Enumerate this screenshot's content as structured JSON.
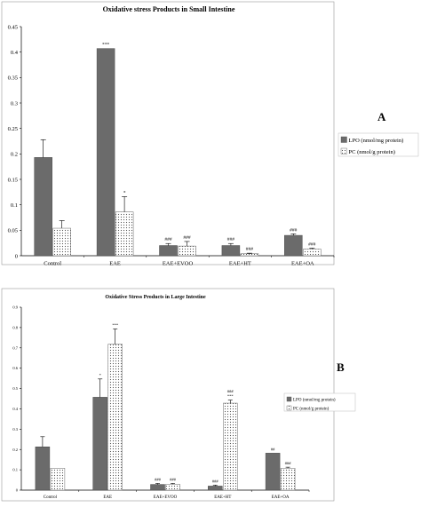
{
  "panels": {
    "a": "A",
    "b": "B"
  },
  "colors": {
    "lpo": "#6b6b6b",
    "pc_bg": "#ffffff",
    "pc_dot": "#555555",
    "axis": "#000000",
    "frame": "#9a9a9a"
  },
  "chart_data": [
    {
      "type": "bar",
      "title": "Oxidative stress Products in Small Intestine",
      "xlabel": "",
      "ylabel": "",
      "categories": [
        "Control",
        "EAE",
        "EAE+EVOO",
        "EAE+HT",
        "EAE+OA"
      ],
      "ylim": [
        0,
        0.45
      ],
      "yticks": [
        "0",
        "0.05",
        "0.1",
        "0.15",
        "0.2",
        "0.25",
        "0.3",
        "0.35",
        "0.4",
        "0.45"
      ],
      "legend_position": "right",
      "series": [
        {
          "name": "LPO (nmol/mg protein)",
          "values": [
            0.193,
            0.407,
            0.02,
            0.02,
            0.04
          ],
          "errors": [
            0.035,
            0.0,
            0.004,
            0.004,
            0.003
          ],
          "annotations": [
            "",
            "***",
            "###",
            "###",
            "###"
          ]
        },
        {
          "name": "PC (nmol/g protein)",
          "values": [
            0.054,
            0.086,
            0.019,
            0.004,
            0.013
          ],
          "errors": [
            0.015,
            0.03,
            0.009,
            0.001,
            0.002
          ],
          "annotations": [
            "",
            "*",
            "###",
            "###",
            "###"
          ]
        }
      ]
    },
    {
      "type": "bar",
      "title": "Oxidative Stress Products in Large Intestine",
      "xlabel": "",
      "ylabel": "",
      "categories": [
        "Control",
        "EAE",
        "EAE+EVOO",
        "EAE+HT",
        "EAE+OA"
      ],
      "ylim": [
        0,
        0.9
      ],
      "yticks": [
        "0",
        "0.1",
        "0.2",
        "0.3",
        "0.4",
        "0.5",
        "0.6",
        "0.7",
        "0.8",
        "0.9"
      ],
      "legend_position": "right",
      "series": [
        {
          "name": "LPO (nmol/mg protein)",
          "values": [
            0.213,
            0.457,
            0.028,
            0.02,
            0.182
          ],
          "errors": [
            0.05,
            0.09,
            0.005,
            0.005,
            0.0
          ],
          "annotations": [
            "",
            "*",
            "###",
            "###",
            "##"
          ]
        },
        {
          "name": "PC (nmol/g protein)",
          "values": [
            0.108,
            0.718,
            0.029,
            0.428,
            0.108
          ],
          "errors": [
            0.0,
            0.075,
            0.004,
            0.015,
            0.005
          ],
          "annotations": [
            "",
            "***",
            "###",
            "###\n***",
            "###"
          ]
        }
      ]
    }
  ]
}
